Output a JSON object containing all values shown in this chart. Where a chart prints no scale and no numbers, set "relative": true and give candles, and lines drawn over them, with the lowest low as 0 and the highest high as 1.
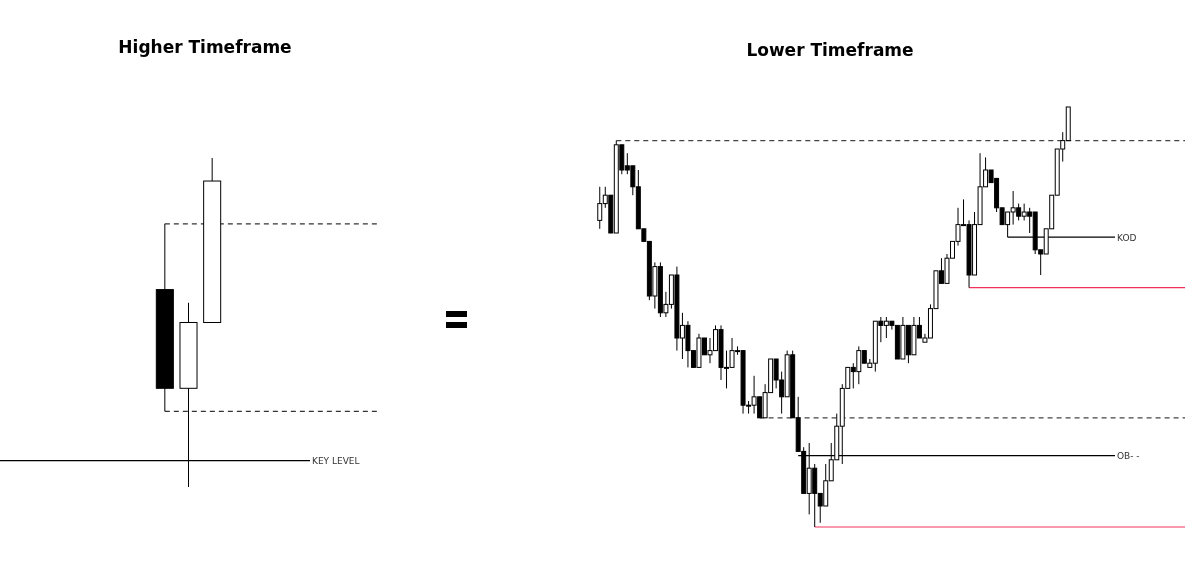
{
  "chart_data": [
    {
      "type": "candlestick",
      "title": "Higher Timeframe",
      "relative": true,
      "categories": [
        null,
        null,
        null
      ],
      "ohlc": [
        [
          0.6,
          0.8,
          0.23,
          0.3
        ],
        [
          0.3,
          0.56,
          0,
          0.5
        ],
        [
          0.5,
          1,
          0.5,
          0.93
        ]
      ],
      "ref_lines": [
        {
          "axis": "y",
          "value": 0.8,
          "color": "#333333",
          "line_style": "dashed"
        },
        {
          "axis": "y",
          "value": 0.23,
          "color": "#333333",
          "line_style": "dashed"
        },
        {
          "axis": "y",
          "value": 0.08,
          "label": "KEY LEVEL",
          "color": "#000000",
          "line_style": "solid"
        }
      ]
    },
    {
      "type": "candlestick",
      "title": "Lower Timeframe",
      "relative": true,
      "categories": [
        null,
        null,
        null,
        null,
        null,
        null,
        null,
        null,
        null,
        null,
        null,
        null,
        null,
        null,
        null,
        null,
        null,
        null,
        null,
        null,
        null,
        null,
        null,
        null,
        null,
        null,
        null,
        null,
        null,
        null,
        null,
        null,
        null,
        null,
        null,
        null,
        null,
        null,
        null,
        null,
        null,
        null,
        null,
        null,
        null,
        null,
        null,
        null,
        null,
        null,
        null,
        null,
        null,
        null,
        null,
        null,
        null,
        null,
        null,
        null,
        null,
        null,
        null,
        null,
        null,
        null,
        null,
        null,
        null,
        null,
        null,
        null,
        null,
        null,
        null,
        null,
        null,
        null,
        null,
        null,
        null,
        null,
        null,
        null,
        null,
        null
      ],
      "ohlc": [
        [
          0.73,
          0.81,
          0.71,
          0.77
        ],
        [
          0.77,
          0.81,
          0.76,
          0.79
        ],
        [
          0.79,
          0.79,
          0.7,
          0.7
        ],
        [
          0.7,
          0.92,
          0.7,
          0.91
        ],
        [
          0.91,
          0.91,
          0.84,
          0.85
        ],
        [
          0.86,
          0.89,
          0.84,
          0.85
        ],
        [
          0.86,
          0.86,
          0.79,
          0.81
        ],
        [
          0.81,
          0.85,
          0.71,
          0.71
        ],
        [
          0.71,
          0.71,
          0.68,
          0.68
        ],
        [
          0.68,
          0.68,
          0.54,
          0.55
        ],
        [
          0.55,
          0.63,
          0.52,
          0.62
        ],
        [
          0.62,
          0.63,
          0.5,
          0.51
        ],
        [
          0.51,
          0.56,
          0.5,
          0.53
        ],
        [
          0.53,
          0.6,
          0.52,
          0.6
        ],
        [
          0.6,
          0.62,
          0.42,
          0.45
        ],
        [
          0.45,
          0.51,
          0.4,
          0.48
        ],
        [
          0.48,
          0.49,
          0.38,
          0.42
        ],
        [
          0.42,
          0.42,
          0.38,
          0.38
        ],
        [
          0.38,
          0.46,
          0.38,
          0.45
        ],
        [
          0.45,
          0.45,
          0.41,
          0.41
        ],
        [
          0.41,
          0.45,
          0.39,
          0.42
        ],
        [
          0.42,
          0.48,
          0.42,
          0.47
        ],
        [
          0.47,
          0.48,
          0.35,
          0.38
        ],
        [
          0.38,
          0.42,
          0.33,
          0.38
        ],
        [
          0.38,
          0.45,
          0.38,
          0.42
        ],
        [
          0.42,
          0.43,
          0.41,
          0.42
        ],
        [
          0.42,
          0.42,
          0.27,
          0.29
        ],
        [
          0.29,
          0.3,
          0.27,
          0.29
        ],
        [
          0.29,
          0.36,
          0.27,
          0.31
        ],
        [
          0.31,
          0.31,
          0.26,
          0.26
        ],
        [
          0.26,
          0.34,
          0.26,
          0.32
        ],
        [
          0.32,
          0.4,
          0.32,
          0.4
        ],
        [
          0.4,
          0.4,
          0.33,
          0.35
        ],
        [
          0.35,
          0.37,
          0.27,
          0.31
        ],
        [
          0.31,
          0.42,
          0.31,
          0.41
        ],
        [
          0.41,
          0.42,
          0.26,
          0.26
        ],
        [
          0.26,
          0.31,
          0.18,
          0.18
        ],
        [
          0.18,
          0.19,
          0.08,
          0.08
        ],
        [
          0.08,
          0.2,
          0.03,
          0.14
        ],
        [
          0.14,
          0.15,
          0,
          0.08
        ],
        [
          0.08,
          0.08,
          0.01,
          0.05
        ],
        [
          0.05,
          0.15,
          0.05,
          0.11
        ],
        [
          0.11,
          0.2,
          0.11,
          0.16
        ],
        [
          0.16,
          0.27,
          0.16,
          0.24
        ],
        [
          0.24,
          0.34,
          0.15,
          0.33
        ],
        [
          0.33,
          0.38,
          0.33,
          0.38
        ],
        [
          0.38,
          0.39,
          0.33,
          0.37
        ],
        [
          0.37,
          0.43,
          0.34,
          0.42
        ],
        [
          0.42,
          0.42,
          0.39,
          0.39
        ],
        [
          0.38,
          0.4,
          0.38,
          0.39
        ],
        [
          0.39,
          0.49,
          0.37,
          0.49
        ],
        [
          0.49,
          0.5,
          0.44,
          0.48
        ],
        [
          0.48,
          0.5,
          0.45,
          0.49
        ],
        [
          0.49,
          0.49,
          0.47,
          0.48
        ],
        [
          0.48,
          0.48,
          0.4,
          0.4
        ],
        [
          0.4,
          0.5,
          0.4,
          0.48
        ],
        [
          0.48,
          0.48,
          0.39,
          0.41
        ],
        [
          0.41,
          0.5,
          0.41,
          0.48
        ],
        [
          0.48,
          0.5,
          0.45,
          0.45
        ],
        [
          0.44,
          0.46,
          0.44,
          0.45
        ],
        [
          0.45,
          0.53,
          0.45,
          0.52
        ],
        [
          0.52,
          0.61,
          0.52,
          0.61
        ],
        [
          0.61,
          0.64,
          0.58,
          0.58
        ],
        [
          0.58,
          0.65,
          0.58,
          0.64
        ],
        [
          0.64,
          0.68,
          0.64,
          0.68
        ],
        [
          0.68,
          0.76,
          0.67,
          0.72
        ],
        [
          0.72,
          0.78,
          0.72,
          0.72
        ],
        [
          0.72,
          0.73,
          0.57,
          0.6
        ],
        [
          0.6,
          0.75,
          0.6,
          0.72
        ],
        [
          0.72,
          0.89,
          0.72,
          0.81
        ],
        [
          0.81,
          0.88,
          0.81,
          0.85
        ],
        [
          0.85,
          0.85,
          0.82,
          0.82
        ],
        [
          0.83,
          0.83,
          0.75,
          0.76
        ],
        [
          0.76,
          0.76,
          0.72,
          0.72
        ],
        [
          0.72,
          0.75,
          0.69,
          0.75
        ],
        [
          0.75,
          0.8,
          0.72,
          0.76
        ],
        [
          0.76,
          0.77,
          0.73,
          0.74
        ],
        [
          0.74,
          0.77,
          0.73,
          0.75
        ],
        [
          0.75,
          0.76,
          0.7,
          0.74
        ],
        [
          0.75,
          0.75,
          0.65,
          0.66
        ],
        [
          0.66,
          0.66,
          0.6,
          0.65
        ],
        [
          0.65,
          0.71,
          0.65,
          0.71
        ],
        [
          0.71,
          0.79,
          0.71,
          0.79
        ],
        [
          0.79,
          0.9,
          0.79,
          0.9
        ],
        [
          0.9,
          0.94,
          0.87,
          0.92
        ],
        [
          0.92,
          1,
          0.92,
          1
        ]
      ],
      "ref_lines": [
        {
          "axis": "y",
          "value": 0.92,
          "color": "#444444",
          "line_style": "dashed"
        },
        {
          "axis": "y",
          "value": 0.26,
          "color": "#444444",
          "line_style": "dashed"
        },
        {
          "axis": "y",
          "value": 0.69,
          "label": "KOD",
          "color": "#000000",
          "line_style": "solid"
        },
        {
          "axis": "y",
          "value": 0.17,
          "label": "OB- -",
          "color": "#000000",
          "line_style": "solid"
        },
        {
          "axis": "y",
          "value": 0.57,
          "color": "#f0325a",
          "line_style": "solid"
        },
        {
          "axis": "y",
          "value": 0,
          "color": "#f0325a",
          "line_style": "solid"
        }
      ]
    }
  ]
}
